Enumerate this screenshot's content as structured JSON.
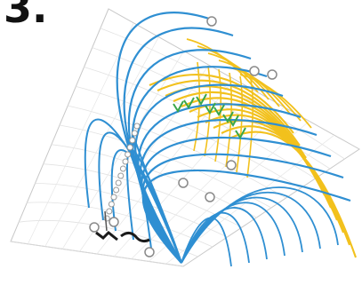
{
  "panel": {
    "label": "3."
  },
  "colors": {
    "blue_lines": "#2f8fd2",
    "yellow_lines": "#f2c11d",
    "green_marks": "#3aa64a",
    "gray_grid": "#c8c8c8",
    "node_stroke": "#8a8a8a",
    "dark_marks": "#1a1a1a"
  },
  "icons": {
    "nodes": "circle-node-icon",
    "green_marks": "tick-mark-icon"
  }
}
